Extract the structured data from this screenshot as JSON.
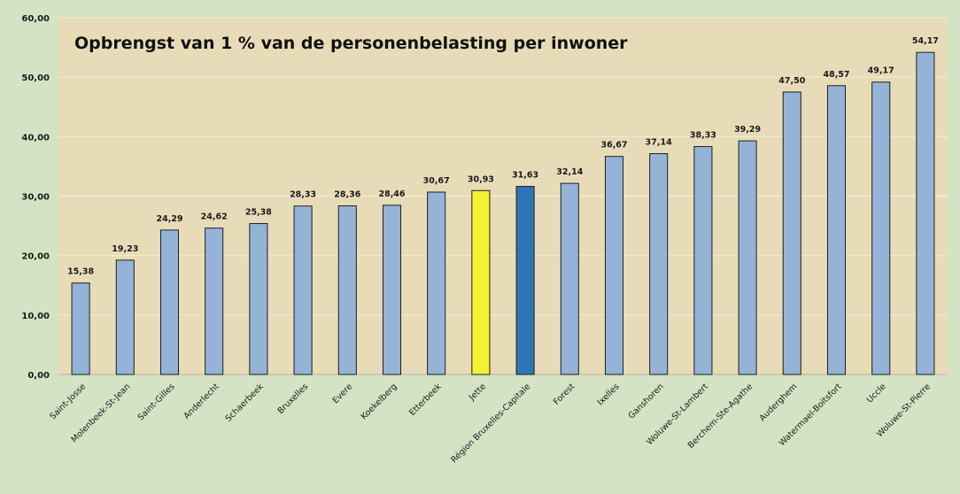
{
  "chart_data": {
    "type": "bar",
    "title": "Opbrengst van 1 % van de personenbelasting per inwoner",
    "xlabel": "",
    "ylabel": "",
    "ylim": [
      0,
      60
    ],
    "yticks": [
      "0,00",
      "10,00",
      "20,00",
      "30,00",
      "40,00",
      "50,00",
      "60,00"
    ],
    "grid": true,
    "categories": [
      "Saint-Josse",
      "Molenbeek-St-Jean",
      "Saint-Gilles",
      "Anderlecht",
      "Schaerbeek",
      "Bruxelles",
      "Evere",
      "Koekelberg",
      "Etterbeek",
      "Jette",
      "Région Bruxelles-Capitale",
      "Forest",
      "Ixelles",
      "Ganshoren",
      "Woluwe-St-Lambert",
      "Berchem-Ste-Agathe",
      "Auderghem",
      "Watermael-Boitsfort",
      "Uccle",
      "Woluwe-St-Pierre"
    ],
    "values": [
      15.38,
      19.23,
      24.29,
      24.62,
      25.38,
      28.33,
      28.36,
      28.46,
      30.67,
      30.93,
      31.63,
      32.14,
      36.67,
      37.14,
      38.33,
      39.29,
      47.5,
      48.57,
      49.17,
      54.17
    ],
    "value_labels": [
      "15,38",
      "19,23",
      "24,29",
      "24,62",
      "25,38",
      "28,33",
      "28,36",
      "28,46",
      "30,67",
      "30,93",
      "31,63",
      "32,14",
      "36,67",
      "37,14",
      "38,33",
      "39,29",
      "47,50",
      "48,57",
      "49,17",
      "54,17"
    ],
    "colors": {
      "default_bar": "#95b3d7",
      "highlight_jette": "#f2f230",
      "highlight_region": "#2e75b6",
      "bar_stroke": "#1f1f1f",
      "plot_background": "#e8dcb8",
      "chart_background": "#d4e3c4",
      "gridline": "#f4ecd0"
    },
    "highlights": {
      "Jette": "highlight_jette",
      "Région Bruxelles-Capitale": "highlight_region"
    }
  }
}
